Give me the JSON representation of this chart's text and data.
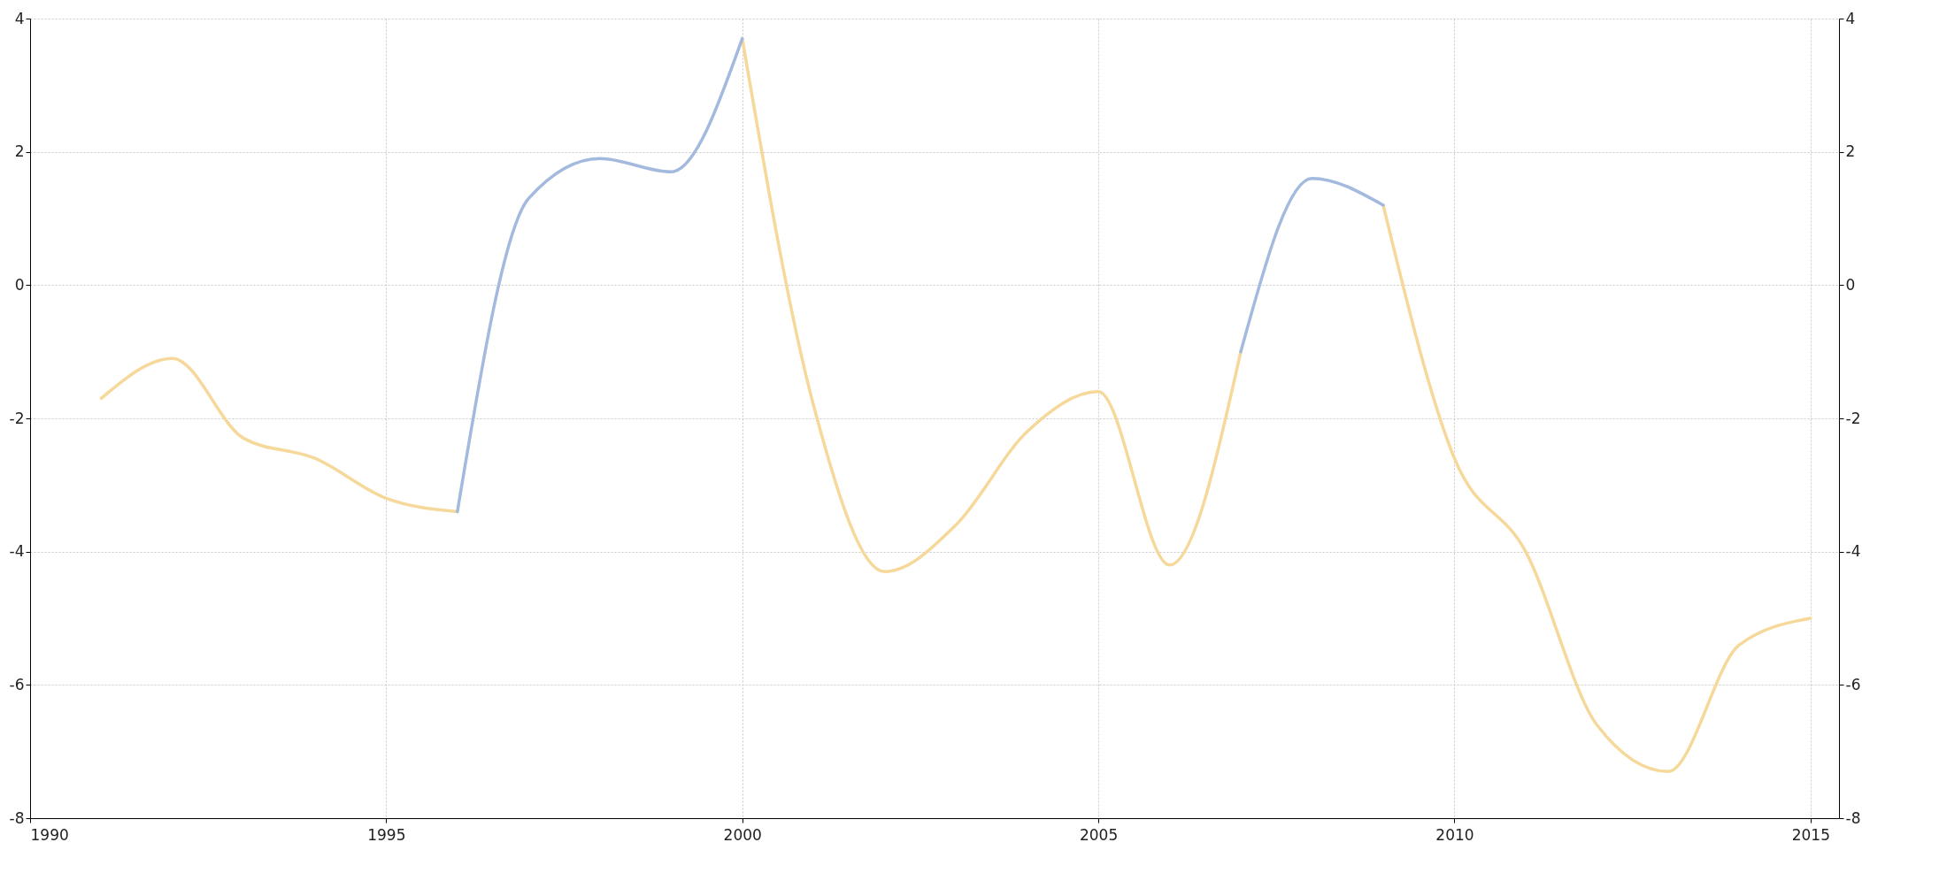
{
  "chart_data": {
    "type": "line",
    "x": [
      1991,
      1992,
      1993,
      1994,
      1995,
      1996,
      1997,
      1998,
      1999,
      2000,
      2001,
      2002,
      2003,
      2004,
      2005,
      2006,
      2007,
      2008,
      2009,
      2010,
      2011,
      2012,
      2013,
      2014,
      2015
    ],
    "series": [
      {
        "color": "#f5d89a",
        "values": [
          -1.7,
          -1.1,
          -2.3,
          -2.6,
          -3.2,
          -3.4,
          null,
          null,
          null,
          3.7,
          -1.8,
          -4.3,
          -3.6,
          -2.2,
          -1.6,
          -4.2,
          -1.0,
          null,
          1.2,
          -2.6,
          -4.0,
          -6.6,
          -7.3,
          -5.4,
          -5.0
        ]
      },
      {
        "color": "#a3bade",
        "values": [
          null,
          null,
          null,
          null,
          null,
          -3.4,
          1.3,
          1.9,
          1.7,
          3.7,
          null,
          null,
          null,
          null,
          null,
          null,
          -1.0,
          1.6,
          1.2,
          null,
          null,
          null,
          null,
          null,
          null
        ]
      }
    ],
    "xlim": [
      1990,
      2015.4
    ],
    "xticks": [
      1990,
      1995,
      2000,
      2005,
      2010,
      2015
    ],
    "ylim": [
      -8,
      4
    ],
    "yticks": [
      -8,
      -6,
      -4,
      -2,
      0,
      2,
      4
    ],
    "y2lim": [
      -8,
      4
    ],
    "y2ticks": [
      -8,
      -6,
      -4,
      -2,
      0,
      2,
      4
    ],
    "grid": true,
    "line_style": "solid"
  }
}
